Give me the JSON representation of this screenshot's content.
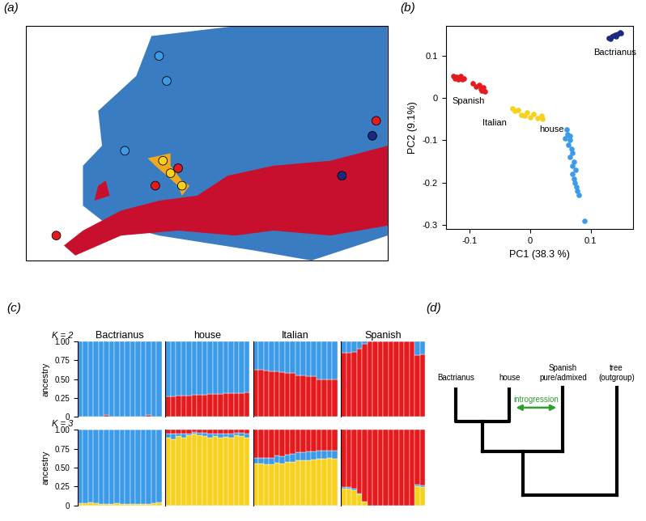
{
  "chart_data": [
    {
      "panel": "(a)",
      "type": "map",
      "xlim": [
        -25,
        70
      ],
      "ylim": [
        25,
        72
      ],
      "tick_labels": false,
      "regions": [
        {
          "color": "#3a7cc2",
          "polygon": [
            [
              -10,
              36
            ],
            [
              -10,
              44
            ],
            [
              -5,
              48
            ],
            [
              -6,
              55
            ],
            [
              4,
              62
            ],
            [
              8,
              70
            ],
            [
              30,
              72
            ],
            [
              70,
              72
            ],
            [
              70,
              30
            ],
            [
              50,
              25
            ],
            [
              35,
              27
            ],
            [
              10,
              30
            ],
            [
              -5,
              33
            ]
          ]
        },
        {
          "color": "#c8102e",
          "polygon": [
            [
              -15,
              28
            ],
            [
              -10,
              31
            ],
            [
              0,
              35
            ],
            [
              10,
              37
            ],
            [
              20,
              38
            ],
            [
              28,
              42
            ],
            [
              40,
              44
            ],
            [
              55,
              45
            ],
            [
              70,
              48
            ],
            [
              70,
              32
            ],
            [
              55,
              30
            ],
            [
              40,
              31
            ],
            [
              30,
              30
            ],
            [
              15,
              31
            ],
            [
              0,
              30
            ],
            [
              -12,
              26
            ]
          ]
        },
        {
          "color": "#c8102e",
          "polygon": [
            [
              -7,
              37
            ],
            [
              -6,
              40
            ],
            [
              -4,
              41
            ],
            [
              -3,
              38
            ]
          ]
        },
        {
          "color": "#f2a91e",
          "polygon": [
            [
              7,
              45.5
            ],
            [
              13,
              46.5
            ],
            [
              13,
              44
            ],
            [
              16,
              41
            ],
            [
              18,
              40
            ],
            [
              16,
              38
            ],
            [
              15,
              40
            ],
            [
              12,
              42
            ],
            [
              9,
              44
            ]
          ]
        }
      ],
      "points": {
        "x": [
          10,
          12,
          1,
          11,
          13,
          16,
          9,
          15,
          -17,
          66,
          67,
          58
        ],
        "y": [
          66,
          61,
          47,
          45,
          42.5,
          40,
          40,
          43.5,
          30,
          50,
          53,
          42
        ],
        "colors": [
          "#3c9be8",
          "#3c9be8",
          "#3c9be8",
          "#f7d11e",
          "#f7d11e",
          "#f7d11e",
          "#e41a1c",
          "#e41a1c",
          "#e41a1c",
          "#1b2a80",
          "#e41a1c",
          "#1b2a80"
        ]
      }
    },
    {
      "panel": "(b)",
      "type": "scatter",
      "x_label": "PC1 (38.3 %)",
      "y_label": "PC2 (9.1%)",
      "xlim": [
        -0.14,
        0.17
      ],
      "ylim": [
        -0.31,
        0.17
      ],
      "xticks": [
        -0.1,
        0,
        0.1
      ],
      "yticks": [
        -0.3,
        -0.2,
        -0.1,
        0,
        0.1
      ],
      "series": [
        {
          "name": "Spanish",
          "color": "#e41a1c",
          "x": [
            -0.128,
            -0.125,
            -0.122,
            -0.12,
            -0.118,
            -0.115,
            -0.113,
            -0.11,
            -0.095,
            -0.09,
            -0.085,
            -0.082,
            -0.08,
            -0.078,
            -0.075
          ],
          "y": [
            0.052,
            0.047,
            0.05,
            0.045,
            0.048,
            0.051,
            0.044,
            0.047,
            0.035,
            0.028,
            0.03,
            0.022,
            0.017,
            0.025,
            0.015
          ]
        },
        {
          "name": "Italian",
          "color": "#f7d11e",
          "x": [
            -0.03,
            -0.025,
            -0.02,
            -0.015,
            -0.01,
            -0.005,
            0.0,
            0.005,
            0.012,
            0.018,
            0.02
          ],
          "y": [
            -0.025,
            -0.03,
            -0.028,
            -0.04,
            -0.042,
            -0.035,
            -0.045,
            -0.038,
            -0.048,
            -0.042,
            -0.05
          ]
        },
        {
          "name": "house",
          "color": "#3c9be8",
          "x": [
            0.06,
            0.062,
            0.065,
            0.058,
            0.066,
            0.063,
            0.068,
            0.07,
            0.065,
            0.072,
            0.069,
            0.075,
            0.07,
            0.072,
            0.074,
            0.076,
            0.078,
            0.08,
            0.09
          ],
          "y": [
            -0.075,
            -0.085,
            -0.09,
            -0.095,
            -0.1,
            -0.11,
            -0.12,
            -0.13,
            -0.14,
            -0.15,
            -0.16,
            -0.17,
            -0.18,
            -0.19,
            -0.2,
            -0.21,
            -0.22,
            -0.23,
            -0.29
          ]
        },
        {
          "name": "Bactrianus",
          "color": "#1b2a80",
          "x": [
            0.13,
            0.135,
            0.138,
            0.14,
            0.142,
            0.145,
            0.148,
            0.15,
            0.133
          ],
          "y": [
            0.142,
            0.145,
            0.148,
            0.15,
            0.146,
            0.152,
            0.155,
            0.153,
            0.14
          ]
        }
      ]
    },
    {
      "panel": "(c)",
      "type": "bar",
      "stacked": true,
      "title": "Bactrianus",
      "annotation": "K = 2",
      "y_label": "ancestry",
      "ylim": [
        0,
        1
      ],
      "yticks": [
        0,
        0.25,
        {
          "value": 0.5,
          "label": "0.50"
        },
        0.75,
        {
          "value": 1,
          "label": "1.00"
        }
      ],
      "categories": [
        null,
        null,
        null,
        null,
        null,
        null,
        null,
        null,
        null,
        null,
        null,
        null,
        null,
        null,
        null,
        null
      ],
      "series": [
        {
          "color": "#e41a1c",
          "values": [
            0,
            0,
            0,
            0,
            0,
            0.02,
            0,
            0,
            0,
            0,
            0,
            0,
            0,
            0.02,
            0,
            0
          ]
        },
        {
          "color": "#3c9be8",
          "values": [
            1,
            1,
            1,
            1,
            1,
            0.98,
            1,
            1,
            1,
            1,
            1,
            1,
            1,
            0.98,
            1,
            1
          ]
        }
      ]
    },
    {
      "type": "bar",
      "stacked": true,
      "title": "house",
      "ylim": [
        0,
        1
      ],
      "tick_labels": false,
      "categories": [
        null,
        null,
        null,
        null,
        null,
        null,
        null,
        null,
        null,
        null,
        null,
        null,
        null,
        null,
        null,
        null
      ],
      "series": [
        {
          "color": "#e41a1c",
          "values": [
            0.27,
            0.27,
            0.28,
            0.28,
            0.28,
            0.29,
            0.29,
            0.29,
            0.3,
            0.3,
            0.3,
            0.31,
            0.31,
            0.31,
            0.31,
            0.32
          ]
        },
        {
          "color": "#3c9be8",
          "values": [
            0.73,
            0.73,
            0.72,
            0.72,
            0.72,
            0.71,
            0.71,
            0.71,
            0.7,
            0.7,
            0.7,
            0.69,
            0.69,
            0.69,
            0.69,
            0.68
          ]
        }
      ]
    },
    {
      "type": "bar",
      "stacked": true,
      "title": "Italian",
      "ylim": [
        0,
        1
      ],
      "tick_labels": false,
      "categories": [
        null,
        null,
        null,
        null,
        null,
        null,
        null,
        null,
        null,
        null,
        null,
        null,
        null,
        null,
        null,
        null
      ],
      "series": [
        {
          "color": "#e41a1c",
          "values": [
            0.62,
            0.62,
            0.61,
            0.6,
            0.6,
            0.59,
            0.58,
            0.58,
            0.55,
            0.55,
            0.54,
            0.54,
            0.5,
            0.5,
            0.49,
            0.49
          ]
        },
        {
          "color": "#3c9be8",
          "values": [
            0.38,
            0.38,
            0.39,
            0.4,
            0.4,
            0.41,
            0.42,
            0.42,
            0.45,
            0.45,
            0.46,
            0.46,
            0.5,
            0.5,
            0.51,
            0.51
          ]
        }
      ]
    },
    {
      "type": "bar",
      "stacked": true,
      "title": "Spanish",
      "ylim": [
        0,
        1
      ],
      "tick_labels": false,
      "categories": [
        null,
        null,
        null,
        null,
        null,
        null,
        null,
        null,
        null,
        null,
        null,
        null,
        null,
        null,
        null,
        null
      ],
      "series": [
        {
          "color": "#e41a1c",
          "values": [
            0.85,
            0.85,
            0.86,
            0.9,
            0.97,
            1,
            1,
            1,
            1,
            1,
            1,
            1,
            1,
            1,
            0.82,
            0.83
          ]
        },
        {
          "color": "#3c9be8",
          "values": [
            0.15,
            0.15,
            0.14,
            0.1,
            0.03,
            0,
            0,
            0,
            0,
            0,
            0,
            0,
            0,
            0,
            0.18,
            0.17
          ]
        }
      ]
    },
    {
      "type": "bar",
      "stacked": true,
      "annotation": "K = 3",
      "y_label": "ancestry",
      "ylim": [
        0,
        1
      ],
      "yticks": [
        0,
        0.25,
        {
          "value": 0.5,
          "label": "0.50"
        },
        0.75,
        {
          "value": 1,
          "label": "1.00"
        }
      ],
      "categories": [
        null,
        null,
        null,
        null,
        null,
        null,
        null,
        null,
        null,
        null,
        null,
        null,
        null,
        null,
        null,
        null
      ],
      "series": [
        {
          "color": "#f7d11e",
          "values": [
            0.03,
            0.03,
            0.04,
            0.03,
            0.02,
            0.02,
            0.02,
            0.03,
            0.02,
            0.02,
            0.02,
            0.02,
            0.02,
            0.02,
            0.03,
            0.04
          ]
        },
        {
          "color": "#3c9be8",
          "values": [
            0.97,
            0.97,
            0.96,
            0.97,
            0.98,
            0.98,
            0.98,
            0.97,
            0.98,
            0.98,
            0.98,
            0.98,
            0.98,
            0.98,
            0.97,
            0.96
          ]
        },
        {
          "color": "#e41a1c",
          "values": [
            0,
            0,
            0,
            0,
            0,
            0,
            0,
            0,
            0,
            0,
            0,
            0,
            0,
            0,
            0,
            0
          ]
        }
      ]
    },
    {
      "type": "bar",
      "stacked": true,
      "ylim": [
        0,
        1
      ],
      "tick_labels": false,
      "categories": [
        null,
        null,
        null,
        null,
        null,
        null,
        null,
        null,
        null,
        null,
        null,
        null,
        null,
        null,
        null,
        null
      ],
      "series": [
        {
          "color": "#f7d11e",
          "values": [
            0.9,
            0.88,
            0.92,
            0.9,
            0.93,
            0.95,
            0.93,
            0.92,
            0.9,
            0.92,
            0.9,
            0.91,
            0.9,
            0.93,
            0.92,
            0.9
          ]
        },
        {
          "color": "#3c9be8",
          "values": [
            0.05,
            0.07,
            0.03,
            0.05,
            0.02,
            0.02,
            0.03,
            0.04,
            0.05,
            0.03,
            0.05,
            0.04,
            0.05,
            0.03,
            0.04,
            0.05
          ]
        },
        {
          "color": "#e41a1c",
          "values": [
            0.05,
            0.05,
            0.05,
            0.05,
            0.05,
            0.03,
            0.04,
            0.04,
            0.05,
            0.05,
            0.05,
            0.05,
            0.05,
            0.04,
            0.04,
            0.05
          ]
        }
      ]
    },
    {
      "type": "bar",
      "stacked": true,
      "ylim": [
        0,
        1
      ],
      "tick_labels": false,
      "categories": [
        null,
        null,
        null,
        null,
        null,
        null,
        null,
        null,
        null,
        null,
        null,
        null,
        null,
        null,
        null,
        null
      ],
      "series": [
        {
          "color": "#f7d11e",
          "values": [
            0.55,
            0.55,
            0.54,
            0.54,
            0.56,
            0.55,
            0.57,
            0.58,
            0.6,
            0.6,
            0.6,
            0.61,
            0.62,
            0.62,
            0.63,
            0.62
          ]
        },
        {
          "color": "#3c9be8",
          "values": [
            0.08,
            0.08,
            0.09,
            0.09,
            0.1,
            0.1,
            0.1,
            0.1,
            0.1,
            0.1,
            0.11,
            0.1,
            0.1,
            0.1,
            0.1,
            0.11
          ]
        },
        {
          "color": "#e41a1c",
          "values": [
            0.37,
            0.37,
            0.37,
            0.37,
            0.34,
            0.35,
            0.33,
            0.32,
            0.3,
            0.3,
            0.29,
            0.29,
            0.28,
            0.28,
            0.27,
            0.27
          ]
        }
      ]
    },
    {
      "type": "bar",
      "stacked": true,
      "ylim": [
        0,
        1
      ],
      "tick_labels": false,
      "categories": [
        null,
        null,
        null,
        null,
        null,
        null,
        null,
        null,
        null,
        null,
        null,
        null,
        null,
        null,
        null,
        null
      ],
      "series": [
        {
          "color": "#f7d11e",
          "values": [
            0.22,
            0.22,
            0.2,
            0.15,
            0.05,
            0,
            0,
            0,
            0,
            0,
            0,
            0,
            0,
            0,
            0.25,
            0.24
          ]
        },
        {
          "color": "#3c9be8",
          "values": [
            0.02,
            0.02,
            0.02,
            0.01,
            0,
            0,
            0,
            0,
            0,
            0,
            0,
            0,
            0,
            0,
            0.03,
            0.02
          ]
        },
        {
          "color": "#e41a1c",
          "values": [
            0.76,
            0.76,
            0.78,
            0.84,
            0.95,
            1,
            1,
            1,
            1,
            1,
            1,
            1,
            1,
            1,
            0.72,
            0.74
          ]
        }
      ]
    }
  ],
  "diagram": {
    "panel": "(d)",
    "leaves": [
      "Bactrianus",
      "house",
      "Spanish\npure/admixed",
      "tree\n(outgroup)"
    ],
    "annotation": "introgression"
  }
}
